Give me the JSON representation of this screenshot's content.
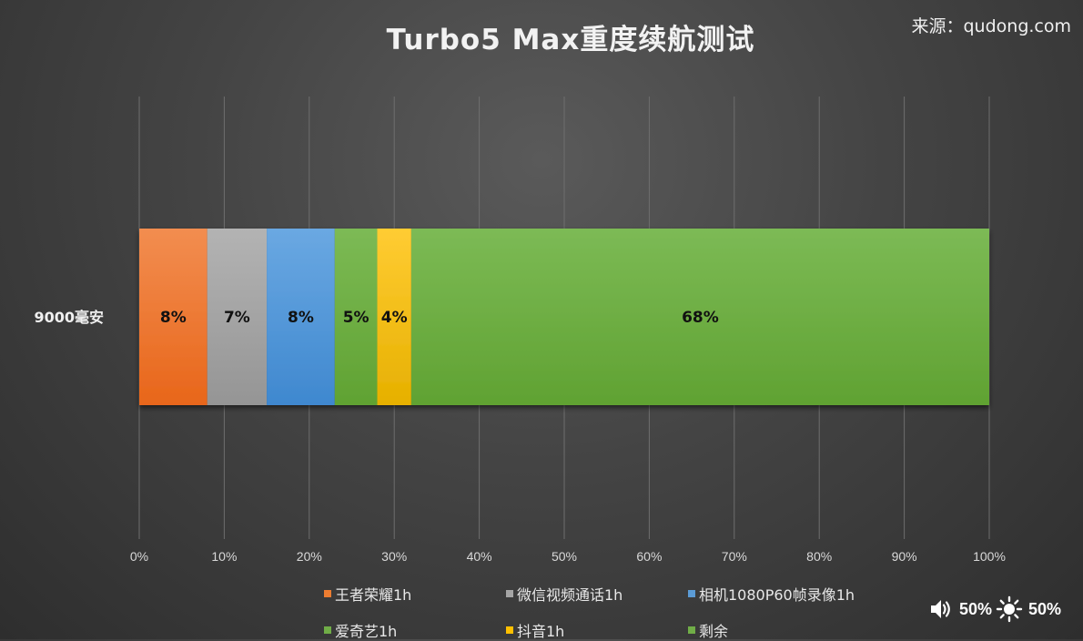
{
  "chart_data": {
    "type": "bar",
    "orientation": "horizontal",
    "stacked": "percent",
    "title": "Turbo5 Max重度续航测试",
    "categories": [
      "9000毫安"
    ],
    "series": [
      {
        "name": "王者荣耀1h",
        "values": [
          8
        ],
        "color": "#ed7d31",
        "label": "8%"
      },
      {
        "name": "微信视频通话1h",
        "values": [
          7
        ],
        "color": "#a5a5a5",
        "label": "7%"
      },
      {
        "name": "相机1080P60帧录像1h",
        "values": [
          8
        ],
        "color": "#5b9bd5",
        "label": "8%"
      },
      {
        "name": "爱奇艺1h",
        "values": [
          5
        ],
        "color": "#70ad47",
        "label": "5%"
      },
      {
        "name": "抖音1h",
        "values": [
          4
        ],
        "color": "#ffc000",
        "label": "4%"
      },
      {
        "name": "剩余",
        "values": [
          68
        ],
        "color": "#70ad47",
        "label": "68%"
      }
    ],
    "xlim": [
      0,
      100
    ],
    "x_ticks": [
      "0%",
      "10%",
      "20%",
      "30%",
      "40%",
      "50%",
      "60%",
      "70%",
      "80%",
      "90%",
      "100%"
    ],
    "grid": true,
    "legend": "bottom"
  },
  "source": "来源：qudong.com",
  "status": {
    "volume_icon": "speaker-icon",
    "volume": "50%",
    "brightness_icon": "sun-icon",
    "brightness": "50%"
  }
}
